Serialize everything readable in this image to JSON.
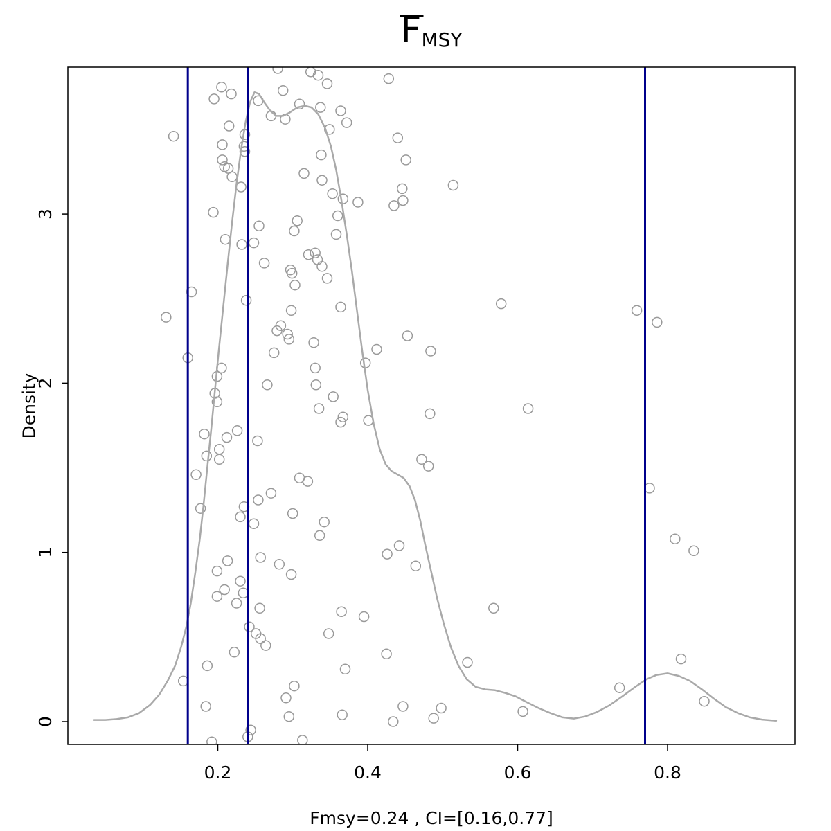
{
  "title": {
    "base": "F",
    "subscript": "MSY",
    "has_overline": true
  },
  "axes": {
    "y_label": "Density",
    "x_tick_labels": [
      "0.2",
      "0.4",
      "0.6",
      "0.8"
    ],
    "x_tick_values": [
      0.2,
      0.4,
      0.6,
      0.8
    ],
    "y_tick_labels": [
      "0",
      "1",
      "2",
      "3"
    ],
    "y_tick_values": [
      0,
      1,
      2,
      3
    ]
  },
  "caption": "Fmsy=0.24 , CI=[0.16,0.77]",
  "colors": {
    "curve": "#A9A9A9",
    "points": "#999999",
    "vline": "#00008B",
    "box": "#000000",
    "text": "#000000"
  },
  "chart_data": {
    "type": "line",
    "title": "F̄_MSY (kernel density of bootstrap Fmsy estimates)",
    "xlabel": "",
    "ylabel": "Density",
    "xlim": [
      0,
      0.97
    ],
    "ylim": [
      -0.135,
      3.868
    ],
    "grid": false,
    "legend": "none",
    "estimate": {
      "label": "Fmsy",
      "value": 0.24,
      "ci_low": 0.16,
      "ci_high": 0.77
    },
    "vlines": [
      0.16,
      0.24,
      0.77
    ],
    "series": [
      {
        "name": "density-curve",
        "type": "line",
        "points": [
          [
            0.035,
            0.01
          ],
          [
            0.05,
            0.01
          ],
          [
            0.065,
            0.015
          ],
          [
            0.08,
            0.025
          ],
          [
            0.095,
            0.05
          ],
          [
            0.11,
            0.1
          ],
          [
            0.122,
            0.16
          ],
          [
            0.133,
            0.24
          ],
          [
            0.143,
            0.33
          ],
          [
            0.151,
            0.44
          ],
          [
            0.158,
            0.56
          ],
          [
            0.164,
            0.7
          ],
          [
            0.17,
            0.88
          ],
          [
            0.176,
            1.08
          ],
          [
            0.181,
            1.28
          ],
          [
            0.186,
            1.5
          ],
          [
            0.191,
            1.72
          ],
          [
            0.196,
            1.95
          ],
          [
            0.201,
            2.18
          ],
          [
            0.207,
            2.44
          ],
          [
            0.213,
            2.7
          ],
          [
            0.219,
            2.95
          ],
          [
            0.225,
            3.18
          ],
          [
            0.231,
            3.38
          ],
          [
            0.237,
            3.54
          ],
          [
            0.243,
            3.66
          ],
          [
            0.249,
            3.72
          ],
          [
            0.255,
            3.71
          ],
          [
            0.262,
            3.66
          ],
          [
            0.27,
            3.61
          ],
          [
            0.278,
            3.58
          ],
          [
            0.287,
            3.58
          ],
          [
            0.296,
            3.6
          ],
          [
            0.306,
            3.63
          ],
          [
            0.316,
            3.64
          ],
          [
            0.325,
            3.63
          ],
          [
            0.334,
            3.59
          ],
          [
            0.343,
            3.51
          ],
          [
            0.351,
            3.4
          ],
          [
            0.358,
            3.26
          ],
          [
            0.365,
            3.08
          ],
          [
            0.372,
            2.88
          ],
          [
            0.379,
            2.66
          ],
          [
            0.386,
            2.42
          ],
          [
            0.393,
            2.18
          ],
          [
            0.4,
            1.96
          ],
          [
            0.408,
            1.76
          ],
          [
            0.416,
            1.61
          ],
          [
            0.424,
            1.52
          ],
          [
            0.432,
            1.48
          ],
          [
            0.44,
            1.46
          ],
          [
            0.448,
            1.44
          ],
          [
            0.456,
            1.39
          ],
          [
            0.463,
            1.31
          ],
          [
            0.47,
            1.19
          ],
          [
            0.477,
            1.04
          ],
          [
            0.485,
            0.88
          ],
          [
            0.493,
            0.72
          ],
          [
            0.502,
            0.57
          ],
          [
            0.511,
            0.44
          ],
          [
            0.521,
            0.33
          ],
          [
            0.532,
            0.25
          ],
          [
            0.544,
            0.205
          ],
          [
            0.557,
            0.19
          ],
          [
            0.57,
            0.185
          ],
          [
            0.583,
            0.17
          ],
          [
            0.597,
            0.15
          ],
          [
            0.612,
            0.115
          ],
          [
            0.628,
            0.08
          ],
          [
            0.644,
            0.05
          ],
          [
            0.66,
            0.025
          ],
          [
            0.675,
            0.018
          ],
          [
            0.69,
            0.03
          ],
          [
            0.705,
            0.055
          ],
          [
            0.722,
            0.095
          ],
          [
            0.74,
            0.15
          ],
          [
            0.757,
            0.205
          ],
          [
            0.772,
            0.25
          ],
          [
            0.785,
            0.275
          ],
          [
            0.8,
            0.285
          ],
          [
            0.815,
            0.27
          ],
          [
            0.83,
            0.24
          ],
          [
            0.846,
            0.19
          ],
          [
            0.862,
            0.135
          ],
          [
            0.878,
            0.085
          ],
          [
            0.894,
            0.05
          ],
          [
            0.91,
            0.025
          ],
          [
            0.926,
            0.012
          ],
          [
            0.945,
            0.005
          ]
        ]
      },
      {
        "name": "sample-points",
        "type": "scatter",
        "points": [
          [
            0.28,
            3.86
          ],
          [
            0.324,
            3.84
          ],
          [
            0.334,
            3.82
          ],
          [
            0.346,
            3.77
          ],
          [
            0.428,
            3.8
          ],
          [
            0.205,
            3.75
          ],
          [
            0.195,
            3.68
          ],
          [
            0.218,
            3.71
          ],
          [
            0.287,
            3.73
          ],
          [
            0.254,
            3.67
          ],
          [
            0.271,
            3.58
          ],
          [
            0.29,
            3.56
          ],
          [
            0.309,
            3.65
          ],
          [
            0.337,
            3.63
          ],
          [
            0.364,
            3.61
          ],
          [
            0.372,
            3.54
          ],
          [
            0.349,
            3.5
          ],
          [
            0.141,
            3.46
          ],
          [
            0.215,
            3.52
          ],
          [
            0.236,
            3.47
          ],
          [
            0.206,
            3.41
          ],
          [
            0.235,
            3.4
          ],
          [
            0.236,
            3.37
          ],
          [
            0.206,
            3.32
          ],
          [
            0.209,
            3.28
          ],
          [
            0.214,
            3.27
          ],
          [
            0.219,
            3.22
          ],
          [
            0.338,
            3.35
          ],
          [
            0.315,
            3.24
          ],
          [
            0.339,
            3.2
          ],
          [
            0.44,
            3.45
          ],
          [
            0.451,
            3.32
          ],
          [
            0.231,
            3.16
          ],
          [
            0.353,
            3.12
          ],
          [
            0.367,
            3.09
          ],
          [
            0.387,
            3.07
          ],
          [
            0.435,
            3.05
          ],
          [
            0.446,
            3.15
          ],
          [
            0.447,
            3.08
          ],
          [
            0.194,
            3.01
          ],
          [
            0.36,
            2.99
          ],
          [
            0.255,
            2.93
          ],
          [
            0.306,
            2.96
          ],
          [
            0.302,
            2.9
          ],
          [
            0.358,
            2.88
          ],
          [
            0.21,
            2.85
          ],
          [
            0.232,
            2.82
          ],
          [
            0.248,
            2.83
          ],
          [
            0.262,
            2.71
          ],
          [
            0.297,
            2.67
          ],
          [
            0.299,
            2.65
          ],
          [
            0.321,
            2.76
          ],
          [
            0.33,
            2.77
          ],
          [
            0.333,
            2.73
          ],
          [
            0.339,
            2.69
          ],
          [
            0.303,
            2.58
          ],
          [
            0.165,
            2.54
          ],
          [
            0.238,
            2.49
          ],
          [
            0.346,
            2.62
          ],
          [
            0.364,
            2.45
          ],
          [
            0.298,
            2.43
          ],
          [
            0.131,
            2.39
          ],
          [
            0.284,
            2.34
          ],
          [
            0.279,
            2.31
          ],
          [
            0.293,
            2.29
          ],
          [
            0.295,
            2.26
          ],
          [
            0.328,
            2.24
          ],
          [
            0.16,
            2.15
          ],
          [
            0.275,
            2.18
          ],
          [
            0.266,
            1.99
          ],
          [
            0.205,
            2.09
          ],
          [
            0.199,
            2.04
          ],
          [
            0.196,
            1.94
          ],
          [
            0.199,
            1.89
          ],
          [
            0.33,
            2.09
          ],
          [
            0.331,
            1.99
          ],
          [
            0.354,
            1.92
          ],
          [
            0.397,
            2.12
          ],
          [
            0.412,
            2.2
          ],
          [
            0.453,
            2.28
          ],
          [
            0.514,
            3.17
          ],
          [
            0.578,
            2.47
          ],
          [
            0.759,
            2.43
          ],
          [
            0.786,
            2.36
          ],
          [
            0.484,
            2.19
          ],
          [
            0.335,
            1.85
          ],
          [
            0.364,
            1.77
          ],
          [
            0.367,
            1.8
          ],
          [
            0.401,
            1.78
          ],
          [
            0.483,
            1.82
          ],
          [
            0.182,
            1.7
          ],
          [
            0.212,
            1.68
          ],
          [
            0.226,
            1.72
          ],
          [
            0.253,
            1.66
          ],
          [
            0.202,
            1.61
          ],
          [
            0.185,
            1.57
          ],
          [
            0.202,
            1.55
          ],
          [
            0.171,
            1.46
          ],
          [
            0.177,
            1.26
          ],
          [
            0.235,
            1.27
          ],
          [
            0.23,
            1.21
          ],
          [
            0.248,
            1.17
          ],
          [
            0.257,
            0.97
          ],
          [
            0.213,
            0.95
          ],
          [
            0.199,
            0.89
          ],
          [
            0.209,
            0.78
          ],
          [
            0.199,
            0.74
          ],
          [
            0.23,
            0.83
          ],
          [
            0.234,
            0.76
          ],
          [
            0.225,
            0.7
          ],
          [
            0.242,
            0.56
          ],
          [
            0.251,
            0.52
          ],
          [
            0.257,
            0.49
          ],
          [
            0.264,
            0.45
          ],
          [
            0.222,
            0.41
          ],
          [
            0.186,
            0.33
          ],
          [
            0.154,
            0.24
          ],
          [
            0.184,
            0.09
          ],
          [
            0.192,
            -0.12
          ],
          [
            0.24,
            -0.09
          ],
          [
            0.256,
            0.67
          ],
          [
            0.254,
            1.31
          ],
          [
            0.271,
            1.35
          ],
          [
            0.282,
            0.93
          ],
          [
            0.298,
            0.87
          ],
          [
            0.3,
            1.23
          ],
          [
            0.302,
            0.21
          ],
          [
            0.291,
            0.14
          ],
          [
            0.313,
            -0.11
          ],
          [
            0.309,
            1.44
          ],
          [
            0.32,
            1.42
          ],
          [
            0.342,
            1.18
          ],
          [
            0.336,
            1.1
          ],
          [
            0.365,
            0.65
          ],
          [
            0.348,
            0.52
          ],
          [
            0.37,
            0.31
          ],
          [
            0.366,
            0.04
          ],
          [
            0.426,
            0.99
          ],
          [
            0.442,
            1.04
          ],
          [
            0.425,
            0.4
          ],
          [
            0.434,
            0.0
          ],
          [
            0.447,
            0.09
          ],
          [
            0.464,
            0.92
          ],
          [
            0.295,
            0.03
          ],
          [
            0.244,
            -0.05
          ],
          [
            0.472,
            1.55
          ],
          [
            0.481,
            1.51
          ],
          [
            0.395,
            0.62
          ],
          [
            0.776,
            1.38
          ],
          [
            0.81,
            1.08
          ],
          [
            0.835,
            1.01
          ],
          [
            0.568,
            0.67
          ],
          [
            0.533,
            0.35
          ],
          [
            0.818,
            0.37
          ],
          [
            0.498,
            0.08
          ],
          [
            0.488,
            0.02
          ],
          [
            0.736,
            0.2
          ],
          [
            0.607,
            0.06
          ],
          [
            0.849,
            0.12
          ],
          [
            0.614,
            1.85
          ]
        ]
      }
    ]
  }
}
